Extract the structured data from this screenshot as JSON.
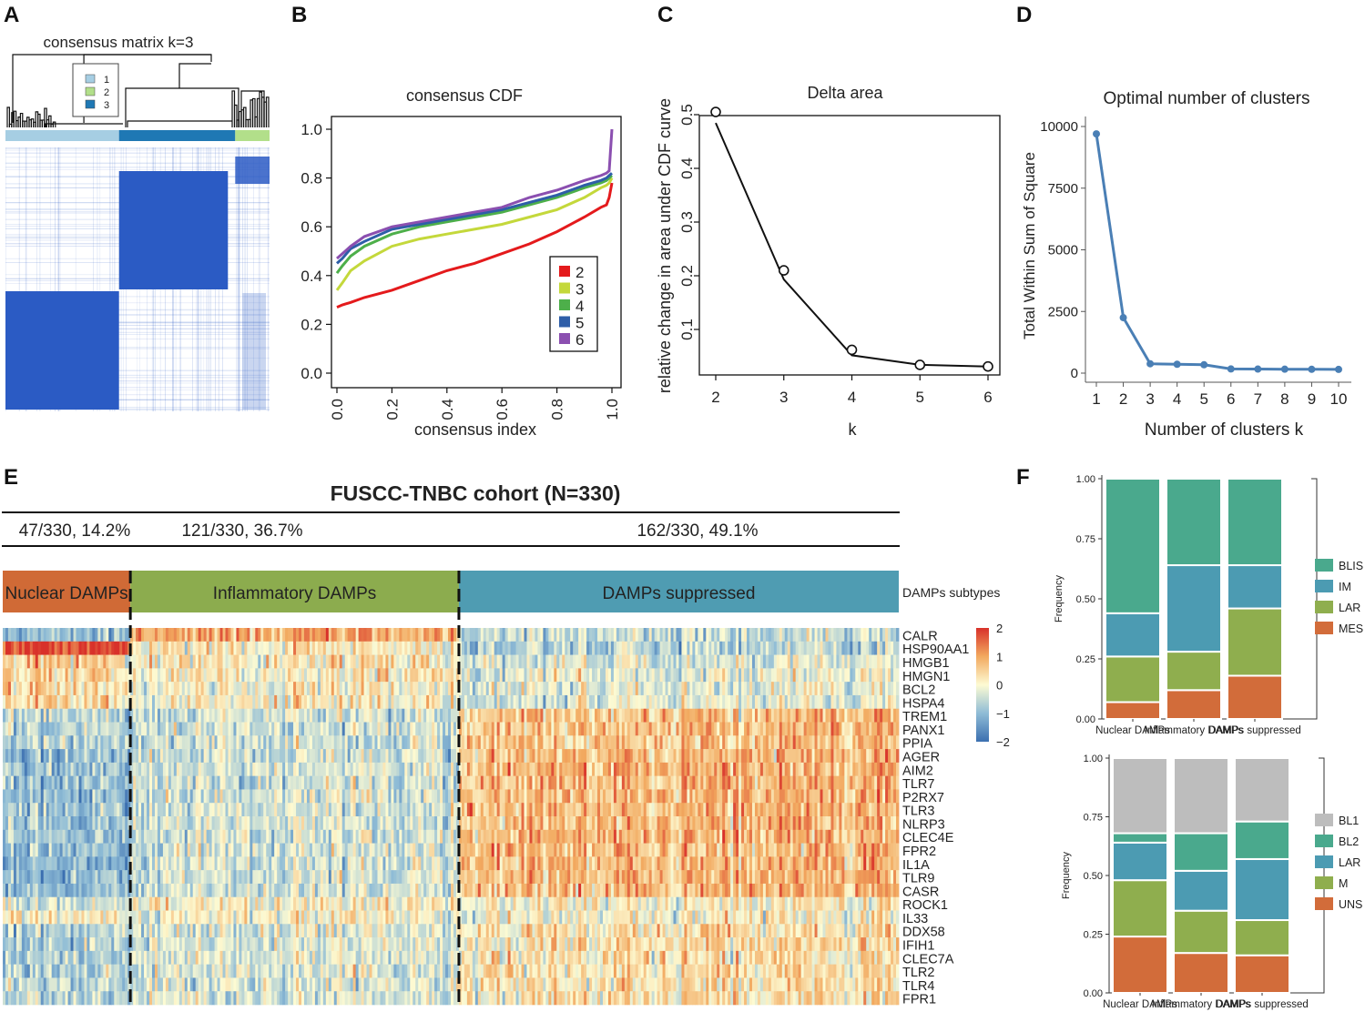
{
  "panels": {
    "a": "A",
    "b": "B",
    "c": "C",
    "d": "D",
    "e": "E",
    "f": "F"
  },
  "panel_a": {
    "title": "consensus matrix k=3",
    "legend": [
      {
        "label": "1",
        "color": "#a6cee3"
      },
      {
        "label": "2",
        "color": "#b2df8a"
      },
      {
        "label": "3",
        "color": "#1f78b4"
      }
    ],
    "blocks": [
      0.43,
      0.44,
      0.13
    ],
    "block_colors": [
      "#a6cee3",
      "#1f78b4",
      "#b2df8a"
    ],
    "matrix_color": "#2b5bc4"
  },
  "chart_data": [
    {
      "panel": "B",
      "type": "line",
      "title": "consensus CDF",
      "xlabel": "consensus index",
      "ylabel": "",
      "xlim": [
        0,
        1
      ],
      "ylim": [
        0,
        1
      ],
      "xticks": [
        "0.0",
        "0.2",
        "0.4",
        "0.6",
        "0.8",
        "1.0"
      ],
      "yticks": [
        "0.0",
        "0.2",
        "0.4",
        "0.6",
        "0.8",
        "1.0"
      ],
      "x": [
        0,
        0.02,
        0.05,
        0.1,
        0.2,
        0.3,
        0.4,
        0.5,
        0.6,
        0.7,
        0.8,
        0.9,
        0.96,
        0.98,
        0.99,
        1.0
      ],
      "series": [
        {
          "name": "2",
          "color": "#e41a1c",
          "values": [
            0.27,
            0.28,
            0.29,
            0.31,
            0.34,
            0.38,
            0.42,
            0.45,
            0.49,
            0.53,
            0.58,
            0.64,
            0.68,
            0.69,
            0.72,
            0.78
          ]
        },
        {
          "name": "3",
          "color": "#c4d83b",
          "values": [
            0.34,
            0.37,
            0.42,
            0.46,
            0.52,
            0.55,
            0.57,
            0.59,
            0.61,
            0.64,
            0.67,
            0.72,
            0.76,
            0.77,
            0.78,
            0.8
          ]
        },
        {
          "name": "4",
          "color": "#4daf4a",
          "values": [
            0.41,
            0.44,
            0.48,
            0.52,
            0.57,
            0.6,
            0.62,
            0.64,
            0.66,
            0.69,
            0.72,
            0.76,
            0.78,
            0.79,
            0.8,
            0.81
          ]
        },
        {
          "name": "5",
          "color": "#2e5ea8",
          "values": [
            0.45,
            0.47,
            0.51,
            0.54,
            0.59,
            0.61,
            0.63,
            0.65,
            0.67,
            0.7,
            0.73,
            0.77,
            0.79,
            0.8,
            0.81,
            0.82
          ]
        },
        {
          "name": "6",
          "color": "#8b4fb0",
          "values": [
            0.47,
            0.49,
            0.52,
            0.56,
            0.6,
            0.62,
            0.64,
            0.66,
            0.68,
            0.72,
            0.75,
            0.79,
            0.81,
            0.82,
            0.83,
            1.0
          ]
        }
      ]
    },
    {
      "panel": "C",
      "type": "line",
      "title": "Delta area",
      "xlabel": "k",
      "ylabel": "relative change in area under CDF curve",
      "x": [
        2,
        3,
        4,
        5,
        6
      ],
      "values": [
        0.505,
        0.21,
        0.062,
        0.034,
        0.031
      ],
      "xlim": [
        2,
        6
      ],
      "ylim": [
        0,
        0.5
      ],
      "xticks": [
        "2",
        "3",
        "4",
        "5",
        "6"
      ],
      "yticks": [
        "0.1",
        "0.2",
        "0.3",
        "0.4",
        "0.5"
      ]
    },
    {
      "panel": "D",
      "type": "line",
      "title": "Optimal number of clusters",
      "xlabel": "Number of clusters k",
      "ylabel": "Total Within Sum of Square",
      "x": [
        1,
        2,
        3,
        4,
        5,
        6,
        7,
        8,
        9,
        10
      ],
      "values": [
        9700,
        2250,
        380,
        360,
        340,
        170,
        165,
        160,
        155,
        150
      ],
      "xlim": [
        1,
        10
      ],
      "ylim": [
        0,
        10000
      ],
      "xticks": [
        "1",
        "2",
        "3",
        "4",
        "5",
        "6",
        "7",
        "8",
        "9",
        "10"
      ],
      "yticks": [
        "0",
        "2500",
        "5000",
        "7500",
        "10000"
      ],
      "color": "#4a7fb5"
    },
    {
      "panel": "E",
      "type": "heatmap",
      "title": "FUSCC-TNBC cohort (N=330)",
      "group_stats": [
        "47/330, 14.2%",
        "121/330, 36.7%",
        "162/330, 49.1%"
      ],
      "groups": [
        {
          "name": "Nuclear DAMPs",
          "n": 47,
          "color": "#d06a36"
        },
        {
          "name": "Inflammatory DAMPs",
          "n": 121,
          "color": "#8cac4e"
        },
        {
          "name": "DAMPs suppressed",
          "n": 162,
          "color": "#4f9cb2"
        }
      ],
      "annotation_label": "DAMPs subtypes",
      "genes": [
        "CALR",
        "HSP90AA1",
        "HMGB1",
        "HMGN1",
        "BCL2",
        "HSPA4",
        "TREM1",
        "PANX1",
        "PPIA",
        "AGER",
        "AIM2",
        "TLR7",
        "P2RX7",
        "TLR3",
        "NLRP3",
        "CLEC4E",
        "FPR2",
        "IL1A",
        "TLR9",
        "CASR",
        "ROCK1",
        "IL33",
        "DDX58",
        "IFIH1",
        "CLEC7A",
        "TLR2",
        "TLR4",
        "FPR1"
      ],
      "group_means": [
        [
          -1.0,
          1.0,
          -0.5
        ],
        [
          1.8,
          0.2,
          -0.6
        ],
        [
          0.4,
          0.2,
          -0.3
        ],
        [
          0.4,
          0.1,
          -0.2
        ],
        [
          0.3,
          0.0,
          -0.2
        ],
        [
          0.3,
          0.1,
          -0.2
        ],
        [
          -0.6,
          -0.4,
          0.7
        ],
        [
          -0.7,
          -0.4,
          0.7
        ],
        [
          -0.7,
          -0.4,
          0.7
        ],
        [
          -1.0,
          -0.4,
          0.8
        ],
        [
          -1.0,
          -0.4,
          0.8
        ],
        [
          -1.0,
          -0.4,
          0.8
        ],
        [
          -1.0,
          -0.4,
          0.8
        ],
        [
          -1.0,
          -0.4,
          0.8
        ],
        [
          -1.0,
          -0.4,
          0.8
        ],
        [
          -1.0,
          -0.4,
          0.8
        ],
        [
          -1.0,
          -0.4,
          0.8
        ],
        [
          -1.0,
          -0.4,
          0.8
        ],
        [
          -1.0,
          -0.4,
          0.8
        ],
        [
          -1.0,
          -0.4,
          0.8
        ],
        [
          -0.4,
          0.1,
          0.1
        ],
        [
          0.0,
          0.0,
          0.0
        ],
        [
          -0.7,
          -0.3,
          0.3
        ],
        [
          -0.7,
          -0.3,
          0.3
        ],
        [
          -0.7,
          -0.3,
          0.3
        ],
        [
          -0.7,
          -0.3,
          0.3
        ],
        [
          -0.7,
          -0.3,
          0.3
        ],
        [
          -0.7,
          -0.3,
          0.3
        ]
      ],
      "color_scale": {
        "min": -2,
        "max": 2,
        "ticks": [
          "2",
          "1",
          "0",
          "−1",
          "−2"
        ],
        "colors": [
          "#3b6fb0",
          "#8fbcd6",
          "#fdfbd3",
          "#f2a95f",
          "#d8312a"
        ]
      }
    },
    {
      "panel": "F-top",
      "type": "bar",
      "stacked": true,
      "ylabel": "Frequency",
      "categories": [
        "Nuclear DAMPs",
        "Inflammatory DAMPs",
        "DAMPs suppressed"
      ],
      "ylim": [
        0,
        1
      ],
      "yticks": [
        "0.00",
        "0.25",
        "0.50",
        "0.75",
        "1.00"
      ],
      "series": [
        {
          "name": "MES",
          "color": "#d26c3a",
          "values": [
            0.07,
            0.12,
            0.18
          ]
        },
        {
          "name": "LAR",
          "color": "#8fae4e",
          "values": [
            0.19,
            0.16,
            0.28
          ]
        },
        {
          "name": "IM",
          "color": "#4c9bb2",
          "values": [
            0.18,
            0.36,
            0.18
          ]
        },
        {
          "name": "BLIS",
          "color": "#4aa98d",
          "values": [
            0.56,
            0.36,
            0.36
          ]
        }
      ],
      "legend_order": [
        "BLIS",
        "IM",
        "LAR",
        "MES"
      ]
    },
    {
      "panel": "F-bottom",
      "type": "bar",
      "stacked": true,
      "ylabel": "Frequency",
      "categories": [
        "Nuclear DAMPs",
        "Inflammatory DAMPs",
        "DAMPs suppressed"
      ],
      "ylim": [
        0,
        1
      ],
      "yticks": [
        "0.00",
        "0.25",
        "0.50",
        "0.75",
        "1.00"
      ],
      "series": [
        {
          "name": "UNS",
          "color": "#d26c3a",
          "values": [
            0.24,
            0.17,
            0.16
          ]
        },
        {
          "name": "M",
          "color": "#8fae4e",
          "values": [
            0.24,
            0.18,
            0.15
          ]
        },
        {
          "name": "LAR",
          "color": "#4c9bb2",
          "values": [
            0.16,
            0.17,
            0.26
          ]
        },
        {
          "name": "BL2",
          "color": "#4aa98d",
          "values": [
            0.04,
            0.16,
            0.16
          ]
        },
        {
          "name": "BL1",
          "color": "#bdbdbd",
          "values": [
            0.32,
            0.32,
            0.27
          ]
        }
      ],
      "legend_order": [
        "BL1",
        "BL2",
        "LAR",
        "M",
        "UNS"
      ]
    }
  ]
}
